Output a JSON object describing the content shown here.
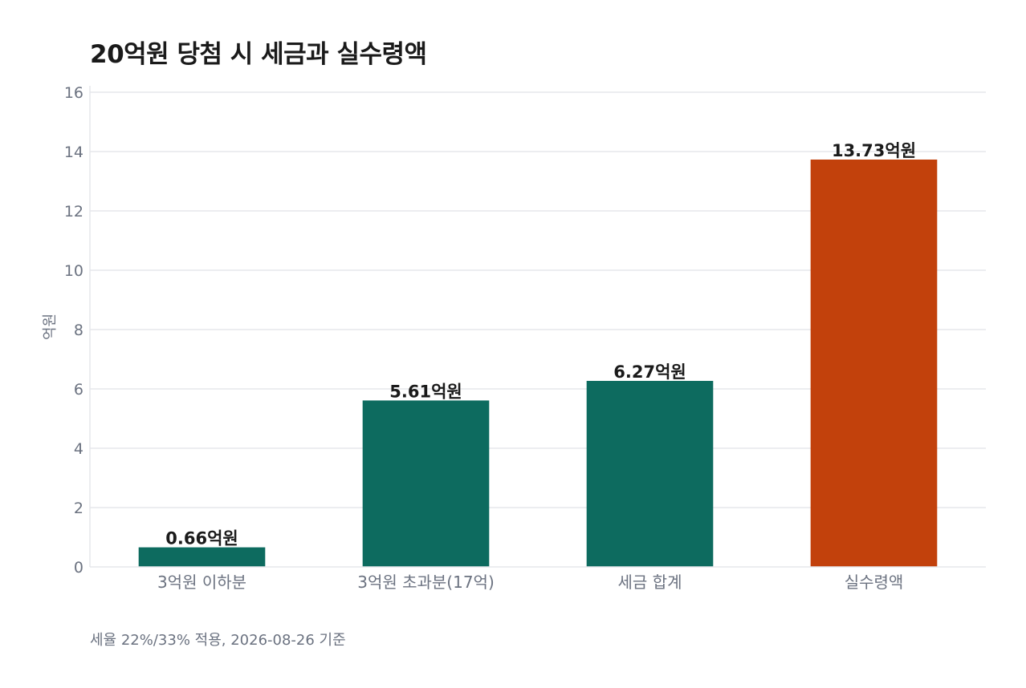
{
  "chart_data": {
    "type": "bar",
    "title": "20억원 당첨 시 세금과 실수령액",
    "ylabel": "억원",
    "xlabel": "",
    "ylim": [
      0,
      16
    ],
    "yticks": [
      0,
      2,
      4,
      6,
      8,
      10,
      12,
      14,
      16
    ],
    "grid": true,
    "categories": [
      "3억원 이하분",
      "3억원 초과분(17억)",
      "세금 합계",
      "실수령액"
    ],
    "values": [
      0.66,
      5.61,
      6.27,
      13.73
    ],
    "value_labels": [
      "0.66억원",
      "5.61억원",
      "6.27억원",
      "13.73억원"
    ],
    "colors": [
      "#0d6b5f",
      "#0d6b5f",
      "#0d6b5f",
      "#c2410c"
    ],
    "note": "세율 22%/33% 적용, 2026-08-26 기준"
  }
}
